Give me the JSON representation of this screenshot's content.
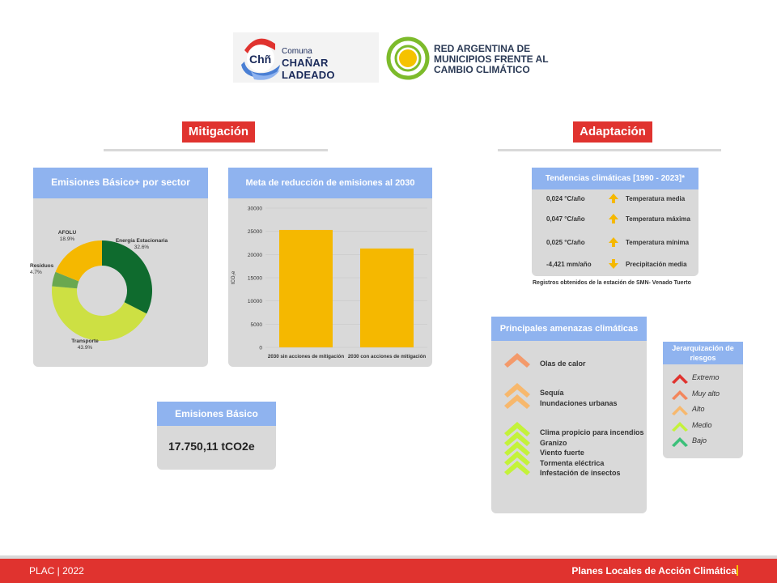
{
  "logos": {
    "comuna_small": "Comuna",
    "comuna_name": "CHAÑAR LADEADO",
    "comuna_mark": "Chñ",
    "red_line1": "RED ARGENTINA DE",
    "red_line2": "MUNICIPIOS FRENTE AL",
    "red_line3": "CAMBIO CLIMÁTICO"
  },
  "sections": {
    "mitigation": "Mitigación",
    "adaptation": "Adaptación"
  },
  "emissions_sector": {
    "title": "Emisiones Básico+ por sector",
    "slices": [
      {
        "name": "Energía Estacionaria",
        "pct": "32.6%",
        "value": 32.6,
        "color": "#0f6b2e"
      },
      {
        "name": "Transporte",
        "pct": "43.9%",
        "value": 43.9,
        "color": "#cde043"
      },
      {
        "name": "Residuos",
        "pct": "4.7%",
        "value": 4.7,
        "color": "#6aa84f"
      },
      {
        "name": "AFOLU",
        "pct": "18.9%",
        "value": 18.9,
        "color": "#f5b800"
      }
    ]
  },
  "chart_data": {
    "type": "bar",
    "title": "Meta de reducción de emisiones al 2030",
    "categories": [
      "2030 sin acciones de mitigación",
      "2030 con acciones de mitigación"
    ],
    "values": [
      25300,
      21300
    ],
    "ylabel": "tCO₂e",
    "yticks": [
      0,
      5000,
      10000,
      15000,
      20000,
      25000,
      30000
    ],
    "ylim": [
      0,
      30000
    ],
    "color": "#f5b800",
    "grid": true
  },
  "basic_emissions": {
    "title": "Emisiones Básico",
    "value": "17.750,11 tCO2e"
  },
  "trends": {
    "title": "Tendencias climáticas [1990 - 2023]*",
    "rows": [
      {
        "value": "0,024 °C/año",
        "label": "Temperatura media",
        "direction": "up"
      },
      {
        "value": "0,047 °C/año",
        "label": "Temperatura máxima",
        "direction": "up"
      },
      {
        "value": "0,025 °C/año",
        "label": "Temperatura mínima",
        "direction": "up"
      },
      {
        "value": "-4,421 mm/año",
        "label": "Precipitación media",
        "direction": "down"
      }
    ],
    "footnote": "Registros obtenidos de la estación de SMN- Venado Tuerto",
    "arrow_color": "#f5b800"
  },
  "threats": {
    "title": "Principales amenazas climáticas",
    "groups": [
      {
        "level": "Muy alto",
        "items": [
          "Olas de calor"
        ],
        "color": "#f39a6b"
      },
      {
        "level": "Alto",
        "items": [
          "Sequía",
          "Inundaciones urbanas"
        ],
        "color": "#f7b86d"
      },
      {
        "level": "Medio",
        "items": [
          "Clima propicio para incendios",
          "Granizo",
          "Viento fuerte",
          "Tormenta eléctrica",
          "Infestación de insectos"
        ],
        "color": "#c4f23a"
      }
    ]
  },
  "risk_legend": {
    "title": "Jerarquización de riesgos",
    "items": [
      {
        "label": "Extremo",
        "color": "#e0332f"
      },
      {
        "label": "Muy alto",
        "color": "#f3865c"
      },
      {
        "label": "Alto",
        "color": "#f7b86d"
      },
      {
        "label": "Medio",
        "color": "#c4f23a"
      },
      {
        "label": "Bajo",
        "color": "#3cc07a"
      }
    ]
  },
  "footer": {
    "left": "PLAC | 2022",
    "right": "Planes Locales de Acción Climática"
  }
}
